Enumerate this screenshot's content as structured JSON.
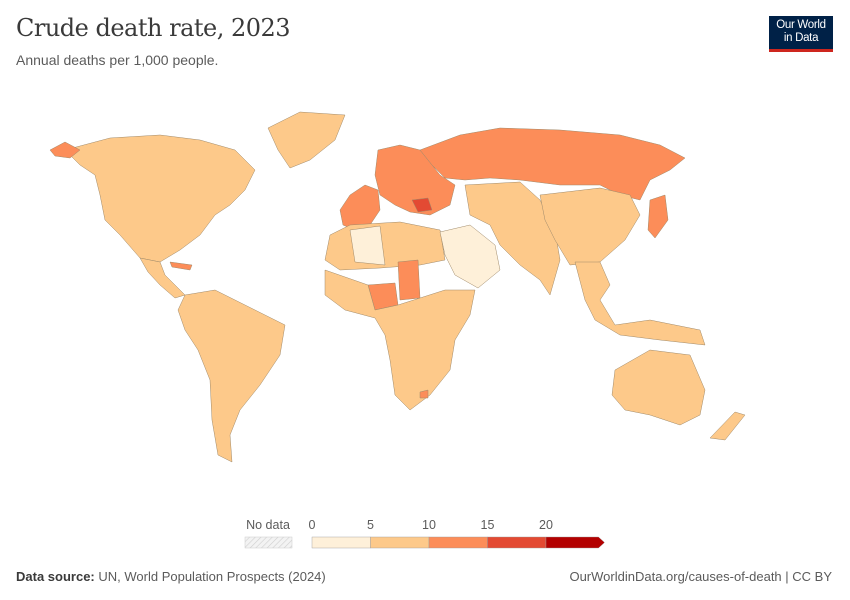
{
  "header": {
    "title": "Crude death rate, 2023",
    "subtitle": "Annual deaths per 1,000 people.",
    "logo_text": [
      "Our World",
      "in Data"
    ]
  },
  "legend": {
    "no_data_label": "No data",
    "no_data_color": "#e6e6e6",
    "bins": [
      {
        "min": 0,
        "max": 5,
        "color": "#fef0d9"
      },
      {
        "min": 5,
        "max": 10,
        "color": "#fdc98a"
      },
      {
        "min": 10,
        "max": 15,
        "color": "#fc8d59"
      },
      {
        "min": 15,
        "max": 20,
        "color": "#e34a33"
      },
      {
        "min": 20,
        "max": null,
        "color": "#b30000"
      }
    ],
    "tick_labels": [
      "0",
      "5",
      "10",
      "15",
      "20"
    ]
  },
  "map_regions": [
    {
      "region": "North America",
      "bin": 1
    },
    {
      "region": "Greenland",
      "bin": 1
    },
    {
      "region": "Alaska",
      "bin": 2
    },
    {
      "region": "Central America",
      "bin": 1
    },
    {
      "region": "Cuba",
      "bin": 2
    },
    {
      "region": "South America",
      "bin": 1
    },
    {
      "region": "Western Europe",
      "bin": 2
    },
    {
      "region": "Eastern Europe",
      "bin": 2
    },
    {
      "region": "Bulgaria / Serbia",
      "bin": 3
    },
    {
      "region": "Russia",
      "bin": 2
    },
    {
      "region": "North Africa",
      "bin": 1
    },
    {
      "region": "Libya / Algeria",
      "bin": 0
    },
    {
      "region": "Chad",
      "bin": 2
    },
    {
      "region": "Nigeria",
      "bin": 2
    },
    {
      "region": "Sub-Saharan Africa",
      "bin": 1
    },
    {
      "region": "Lesotho",
      "bin": 2
    },
    {
      "region": "Middle East (Gulf)",
      "bin": 0
    },
    {
      "region": "Central & South Asia",
      "bin": 1
    },
    {
      "region": "China",
      "bin": 1
    },
    {
      "region": "Japan",
      "bin": 2
    },
    {
      "region": "Southeast Asia",
      "bin": 1
    },
    {
      "region": "Australia",
      "bin": 1
    },
    {
      "region": "New Zealand",
      "bin": 1
    }
  ],
  "footer": {
    "source_label": "Data source:",
    "source": "UN, World Population Prospects (2024)",
    "link": "OurWorldinData.org/causes-of-death | CC BY"
  }
}
